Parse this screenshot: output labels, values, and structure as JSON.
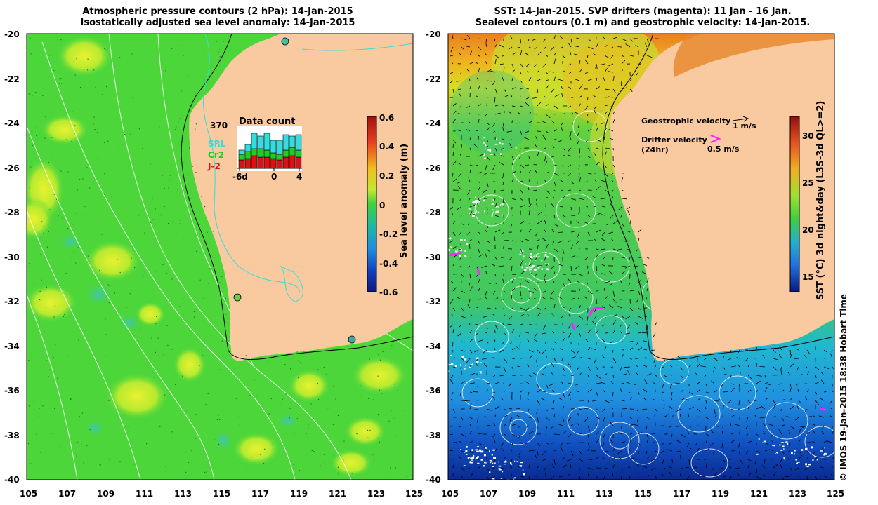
{
  "left_panel": {
    "title_line1": "Atmospheric pressure contours (2 hPa): 14-Jan-2015",
    "title_line2": "Isostatically adjusted sea level anomaly: 14-Jan-2015",
    "x_ticks": [
      "105",
      "107",
      "109",
      "111",
      "113",
      "115",
      "117",
      "119",
      "121",
      "123",
      "125"
    ],
    "y_ticks": [
      "-20",
      "-22",
      "-24",
      "-26",
      "-28",
      "-30",
      "-32",
      "-34",
      "-36",
      "-38",
      "-40"
    ],
    "colorbar": {
      "label": "Sea level anomaly (m)",
      "ticks": [
        "0.6",
        "0.4",
        "0.2",
        "0",
        "-0.2",
        "-0.4",
        "-0.6"
      ]
    },
    "inset": {
      "title": "Data count",
      "max_count": "370",
      "legend": [
        {
          "name": "SRL",
          "color": "#33dddd"
        },
        {
          "name": "Cr2",
          "color": "#22cc22"
        },
        {
          "name": "J-2",
          "color": "#dd1111"
        }
      ],
      "x_ticks": [
        "-6d",
        "0",
        "4"
      ]
    }
  },
  "right_panel": {
    "title_line1": "SST: 14-Jan-2015. SVP drifters (magenta): 11 Jan - 16 Jan.",
    "title_line2": "Sealevel contours (0.1 m) and geostrophic velocity: 14-Jan-2015.",
    "x_ticks": [
      "105",
      "107",
      "109",
      "111",
      "113",
      "115",
      "117",
      "119",
      "121",
      "123",
      "125"
    ],
    "y_ticks": [
      "-20",
      "-22",
      "-24",
      "-26",
      "-28",
      "-30",
      "-32",
      "-34",
      "-36",
      "-38",
      "-40"
    ],
    "colorbar": {
      "label": "SST (°C) 3d night&day (L3S-3d QL>=2)",
      "ticks": [
        "30",
        "25",
        "20",
        "15"
      ]
    },
    "legend": {
      "geostrophic_label": "Geostrophic velocity",
      "geostrophic_scale": "1 m/s",
      "drifter_label_line1": "Drifter velocity",
      "drifter_label_line2": "(24hr)",
      "drifter_scale": "0.5 m/s"
    }
  },
  "credit": "© IMOS 19-Jan-2015 18:38 Hobart Time",
  "colors": {
    "land": "#f9c9a0",
    "ocean_green": "#4cd63a",
    "ocean_yellow": "#c8ee30",
    "drifter": "#ff22ff",
    "contour": "#ffffff"
  }
}
